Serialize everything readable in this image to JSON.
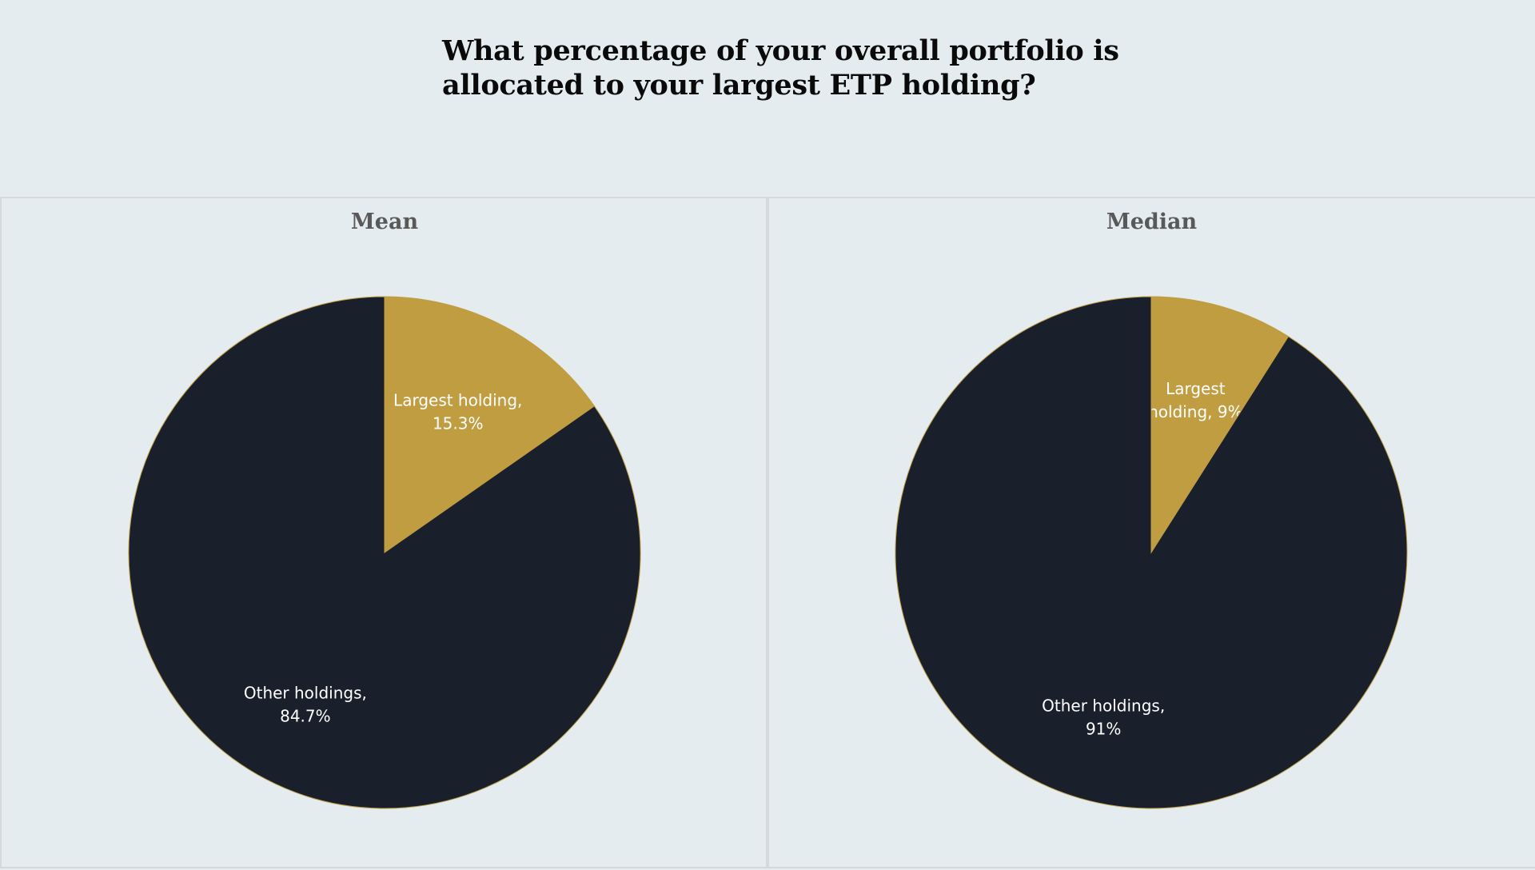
{
  "title": {
    "line1": "What percentage of your overall portfolio is",
    "line2": "allocated to your largest ETP holding?"
  },
  "colors": {
    "background": "#e4ecef",
    "largest": "#c09d40",
    "other": "#1a1f2c",
    "label": "#ffffff"
  },
  "chart_data": [
    {
      "type": "pie",
      "title": "Mean",
      "slices": [
        {
          "name": "Largest holding",
          "value": 15.3,
          "label_lines": [
            "Largest holding,",
            "15.3%"
          ],
          "color": "#c09d40"
        },
        {
          "name": "Other holdings",
          "value": 84.7,
          "label_lines": [
            "Other holdings,",
            "84.7%"
          ],
          "color": "#1a1f2c"
        }
      ]
    },
    {
      "type": "pie",
      "title": "Median",
      "slices": [
        {
          "name": "Largest holding",
          "value": 9,
          "label_lines": [
            "Largest",
            "holding, 9%"
          ],
          "color": "#c09d40"
        },
        {
          "name": "Other holdings",
          "value": 91,
          "label_lines": [
            "Other holdings,",
            "91%"
          ],
          "color": "#1a1f2c"
        }
      ]
    }
  ]
}
